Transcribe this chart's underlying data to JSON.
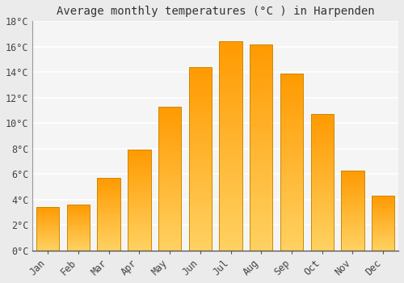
{
  "months": [
    "Jan",
    "Feb",
    "Mar",
    "Apr",
    "May",
    "Jun",
    "Jul",
    "Aug",
    "Sep",
    "Oct",
    "Nov",
    "Dec"
  ],
  "temperatures": [
    3.4,
    3.6,
    5.7,
    7.9,
    11.3,
    14.4,
    16.4,
    16.2,
    13.9,
    10.7,
    6.3,
    4.3
  ],
  "title": "Average monthly temperatures (°C ) in Harpenden",
  "ylim": [
    0,
    18
  ],
  "yticks": [
    0,
    2,
    4,
    6,
    8,
    10,
    12,
    14,
    16,
    18
  ],
  "ytick_labels": [
    "0°C",
    "2°C",
    "4°C",
    "6°C",
    "8°C",
    "10°C",
    "12°C",
    "14°C",
    "16°C",
    "18°C"
  ],
  "bar_color": "#FFAA00",
  "bar_edge_color": "#CC8800",
  "background_color": "#EBEBEB",
  "plot_bg_color": "#F5F5F5",
  "grid_color": "#FFFFFF",
  "title_fontsize": 10,
  "tick_fontsize": 8.5,
  "bar_width": 0.75
}
